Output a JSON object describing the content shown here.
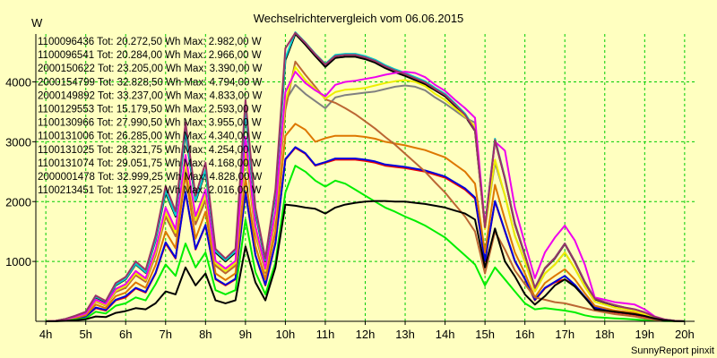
{
  "chart_data": {
    "type": "line",
    "title": "Wechselrichtervergleich vom 06.06.2015",
    "ylabel": "W",
    "xlabel": "",
    "footer": "SunnyReport pinxit",
    "xlim": [
      3.75,
      20.25
    ],
    "ylim": [
      0,
      4800
    ],
    "yticks": [
      1000,
      2000,
      3000,
      4000
    ],
    "xticks": [
      {
        "v": 4,
        "label": "4h"
      },
      {
        "v": 5,
        "label": "5h"
      },
      {
        "v": 6,
        "label": "6h"
      },
      {
        "v": 7,
        "label": "7h"
      },
      {
        "v": 8,
        "label": "8h"
      },
      {
        "v": 9,
        "label": "9h"
      },
      {
        "v": 10,
        "label": "10h"
      },
      {
        "v": 11,
        "label": "11h"
      },
      {
        "v": 12,
        "label": "12h"
      },
      {
        "v": 13,
        "label": "13h"
      },
      {
        "v": 14,
        "label": "14h"
      },
      {
        "v": 15,
        "label": "15h"
      },
      {
        "v": 16,
        "label": "16h"
      },
      {
        "v": 17,
        "label": "17h"
      },
      {
        "v": 18,
        "label": "18h"
      },
      {
        "v": 19,
        "label": "19h"
      },
      {
        "v": 20,
        "label": "20h"
      }
    ],
    "grid": true,
    "x": [
      4.0,
      4.25,
      4.5,
      4.75,
      5.0,
      5.25,
      5.5,
      5.75,
      6.0,
      6.25,
      6.5,
      6.75,
      7.0,
      7.25,
      7.5,
      7.75,
      8.0,
      8.25,
      8.5,
      8.75,
      9.0,
      9.25,
      9.5,
      9.75,
      10.0,
      10.25,
      10.5,
      10.75,
      11.0,
      11.25,
      11.5,
      11.75,
      12.0,
      12.25,
      12.5,
      12.75,
      13.0,
      13.25,
      13.5,
      13.75,
      14.0,
      14.25,
      14.5,
      14.75,
      15.0,
      15.25,
      15.5,
      15.75,
      16.0,
      16.25,
      16.5,
      16.75,
      17.0,
      17.25,
      17.5,
      17.75,
      18.0,
      18.25,
      18.5,
      18.75,
      19.0,
      19.25,
      19.5,
      19.75,
      20.0
    ],
    "series": [
      {
        "name": "1100096436 Tot: 20.272,50 Wh Max: 2.982,00 W",
        "color": "#ee0000",
        "values": [
          0,
          5,
          20,
          50,
          80,
          220,
          180,
          350,
          400,
          550,
          480,
          800,
          1300,
          1050,
          2150,
          1200,
          1600,
          700,
          600,
          700,
          2150,
          1100,
          600,
          1300,
          2700,
          2900,
          2800,
          2600,
          2650,
          2700,
          2700,
          2700,
          2680,
          2650,
          2600,
          2580,
          2560,
          2530,
          2500,
          2450,
          2400,
          2300,
          2200,
          2050,
          1000,
          2000,
          1500,
          1000,
          700,
          350,
          550,
          650,
          700,
          600,
          400,
          220,
          180,
          150,
          130,
          110,
          80,
          40,
          15,
          5,
          0
        ]
      },
      {
        "name": "1100096541 Tot: 20.284,00 Wh Max: 2.966,00 W",
        "color": "#0000dd",
        "values": [
          0,
          5,
          20,
          50,
          80,
          230,
          190,
          360,
          420,
          560,
          490,
          810,
          1320,
          1060,
          2160,
          1210,
          1610,
          710,
          610,
          710,
          2160,
          1110,
          610,
          1310,
          2710,
          2910,
          2810,
          2610,
          2660,
          2720,
          2720,
          2720,
          2700,
          2670,
          2620,
          2600,
          2580,
          2550,
          2520,
          2470,
          2420,
          2320,
          2220,
          2070,
          1010,
          2010,
          1510,
          1010,
          710,
          360,
          560,
          660,
          760,
          610,
          410,
          230,
          190,
          160,
          140,
          120,
          90,
          45,
          18,
          6,
          0
        ]
      },
      {
        "name": "2000150622 Tot: 23.205,00 Wh Max: 3.390,00 W",
        "color": "#dd7700",
        "values": [
          0,
          6,
          25,
          60,
          100,
          280,
          220,
          420,
          480,
          650,
          560,
          940,
          1500,
          1220,
          2450,
          1380,
          1830,
          800,
          690,
          800,
          2400,
          1260,
          700,
          1500,
          3100,
          3300,
          3200,
          3000,
          3060,
          3100,
          3100,
          3100,
          3080,
          3050,
          3000,
          2970,
          2940,
          2900,
          2860,
          2800,
          2740,
          2620,
          2500,
          2300,
          1150,
          2280,
          1700,
          1150,
          800,
          400,
          640,
          760,
          870,
          700,
          470,
          260,
          220,
          180,
          160,
          140,
          100,
          50,
          20,
          6,
          0
        ]
      },
      {
        "name": "2000154799 Tot: 32.828,50 Wh Max: 4.794,00 W",
        "color": "#000000",
        "values": [
          0,
          8,
          40,
          90,
          150,
          400,
          320,
          600,
          700,
          950,
          810,
          1350,
          2150,
          1750,
          3150,
          2000,
          2500,
          1150,
          1000,
          1150,
          3500,
          1800,
          1000,
          2100,
          4360,
          4800,
          4620,
          4430,
          4250,
          4400,
          4420,
          4420,
          4380,
          4320,
          4230,
          4160,
          4100,
          4030,
          3960,
          3860,
          3760,
          3600,
          3430,
          3180,
          1560,
          3020,
          2380,
          1620,
          1100,
          550,
          880,
          1050,
          1290,
          990,
          650,
          370,
          310,
          260,
          220,
          190,
          140,
          70,
          28,
          8,
          0
        ]
      },
      {
        "name": "2000149892 Tot: 33.237,00 Wh Max: 4.833,00 W",
        "color": "#00cccc",
        "values": [
          0,
          8,
          40,
          92,
          155,
          410,
          330,
          610,
          710,
          960,
          820,
          1370,
          2180,
          1770,
          3190,
          2020,
          2530,
          1170,
          1020,
          1170,
          3540,
          1830,
          1020,
          2130,
          4400,
          4830,
          4660,
          4470,
          4300,
          4450,
          4470,
          4470,
          4430,
          4370,
          4280,
          4210,
          4150,
          4080,
          4010,
          3900,
          3800,
          3640,
          3470,
          3210,
          1580,
          3050,
          2400,
          1640,
          1110,
          560,
          890,
          1060,
          1300,
          1000,
          660,
          380,
          320,
          270,
          230,
          200,
          150,
          75,
          30,
          9,
          0
        ]
      },
      {
        "name": "1100129553 Tot: 15.179,50 Wh Max: 2.593,00 W",
        "color": "#00ee00",
        "values": [
          0,
          3,
          12,
          30,
          50,
          160,
          130,
          260,
          300,
          400,
          350,
          620,
          950,
          760,
          1300,
          900,
          1150,
          520,
          450,
          520,
          1700,
          820,
          450,
          980,
          2150,
          2600,
          2500,
          2350,
          2250,
          2350,
          2300,
          2200,
          2100,
          2000,
          1900,
          1830,
          1750,
          1680,
          1600,
          1500,
          1400,
          1250,
          1100,
          950,
          600,
          900,
          700,
          500,
          300,
          200,
          220,
          200,
          180,
          150,
          100,
          70,
          60,
          50,
          40,
          30,
          20,
          10,
          5,
          2,
          0
        ]
      },
      {
        "name": "1100130966 Tot: 27.990,50 Wh Max: 3.955,00 W",
        "color": "#808080",
        "values": [
          0,
          7,
          34,
          78,
          130,
          340,
          270,
          510,
          590,
          800,
          690,
          1150,
          1820,
          1480,
          2660,
          1690,
          2110,
          970,
          840,
          970,
          2950,
          1520,
          840,
          1760,
          3680,
          3950,
          3800,
          3680,
          3560,
          3740,
          3780,
          3800,
          3820,
          3840,
          3880,
          3920,
          3940,
          3920,
          3860,
          3740,
          3640,
          3520,
          3400,
          3320,
          1540,
          2650,
          2100,
          1430,
          1000,
          500,
          800,
          950,
          1150,
          880,
          580,
          330,
          280,
          230,
          200,
          170,
          120,
          60,
          24,
          7,
          0
        ]
      },
      {
        "name": "1100131006 Tot: 26.285,00 Wh Max: 4.340,00 W",
        "color": "#bb6633",
        "values": [
          0,
          7,
          32,
          72,
          125,
          330,
          260,
          490,
          560,
          770,
          660,
          1100,
          1750,
          1420,
          2560,
          1620,
          2020,
          930,
          800,
          930,
          2850,
          1460,
          810,
          1700,
          3530,
          4340,
          4120,
          3920,
          3710,
          3650,
          3560,
          3460,
          3340,
          3220,
          3080,
          2950,
          2800,
          2650,
          2500,
          2320,
          2150,
          1950,
          1750,
          1500,
          800,
          1500,
          1200,
          850,
          620,
          400,
          360,
          320,
          300,
          260,
          220,
          180,
          150,
          120,
          100,
          80,
          50,
          25,
          10,
          3,
          0
        ]
      },
      {
        "name": "1100131025 Tot: 28.321,75 Wh Max: 4.254,00 W",
        "color": "#eeee00",
        "values": [
          0,
          7,
          34,
          78,
          130,
          340,
          270,
          510,
          590,
          800,
          690,
          1150,
          1820,
          1480,
          2660,
          1690,
          2110,
          970,
          840,
          970,
          2950,
          1520,
          840,
          1760,
          3680,
          4250,
          4030,
          3880,
          3720,
          3830,
          3870,
          3880,
          3900,
          3940,
          3980,
          4010,
          4030,
          4000,
          3930,
          3800,
          3700,
          3560,
          3420,
          3260,
          1540,
          2700,
          2100,
          1430,
          1000,
          500,
          800,
          950,
          1150,
          880,
          580,
          330,
          280,
          230,
          200,
          170,
          120,
          60,
          24,
          7,
          0
        ]
      },
      {
        "name": "1100131074 Tot: 29.051,75 Wh Max: 4.168,00 W",
        "color": "#ee00ee",
        "values": [
          0,
          7,
          35,
          80,
          135,
          360,
          290,
          540,
          620,
          840,
          720,
          1200,
          1900,
          1540,
          2780,
          1760,
          2200,
          1010,
          880,
          1010,
          3080,
          1590,
          880,
          1840,
          3830,
          4170,
          3980,
          3860,
          3760,
          3950,
          4000,
          4020,
          4050,
          4080,
          4120,
          4150,
          4170,
          4150,
          4080,
          3950,
          3850,
          3700,
          3560,
          3400,
          1600,
          3000,
          2850,
          1900,
          1300,
          720,
          1150,
          1400,
          1600,
          1350,
          950,
          400,
          360,
          320,
          300,
          280,
          200,
          80,
          30,
          9,
          0
        ]
      },
      {
        "name": "2000001478 Tot: 32.999,25 Wh Max: 4.828,00 W",
        "color": "#993366",
        "values": [
          0,
          8,
          42,
          95,
          160,
          430,
          340,
          640,
          740,
          1000,
          860,
          1430,
          2260,
          1840,
          3320,
          2100,
          2650,
          1210,
          1050,
          1210,
          3700,
          1900,
          1050,
          2200,
          4560,
          4820,
          4650,
          4460,
          4290,
          4430,
          4450,
          4450,
          4410,
          4350,
          4260,
          4190,
          4130,
          4060,
          3990,
          3880,
          3780,
          3620,
          3450,
          3190,
          1570,
          3030,
          2390,
          1630,
          1110,
          560,
          890,
          1060,
          1300,
          1000,
          660,
          380,
          320,
          270,
          230,
          200,
          150,
          75,
          30,
          9,
          0
        ]
      },
      {
        "name": "1100213451 Tot: 13.927,25 Wh Max: 2.016,00 W",
        "color": "#000000",
        "values": [
          0,
          2,
          8,
          20,
          35,
          80,
          70,
          140,
          170,
          220,
          200,
          300,
          500,
          450,
          900,
          600,
          800,
          350,
          300,
          350,
          1250,
          650,
          350,
          900,
          1950,
          1930,
          1900,
          1880,
          1800,
          1900,
          1950,
          1980,
          2000,
          2010,
          2010,
          2000,
          2000,
          1980,
          1960,
          1930,
          1900,
          1850,
          1800,
          1700,
          900,
          1550,
          1000,
          750,
          450,
          280,
          420,
          600,
          700,
          580,
          400,
          200,
          180,
          160,
          140,
          120,
          90,
          45,
          18,
          5,
          0
        ]
      }
    ]
  }
}
